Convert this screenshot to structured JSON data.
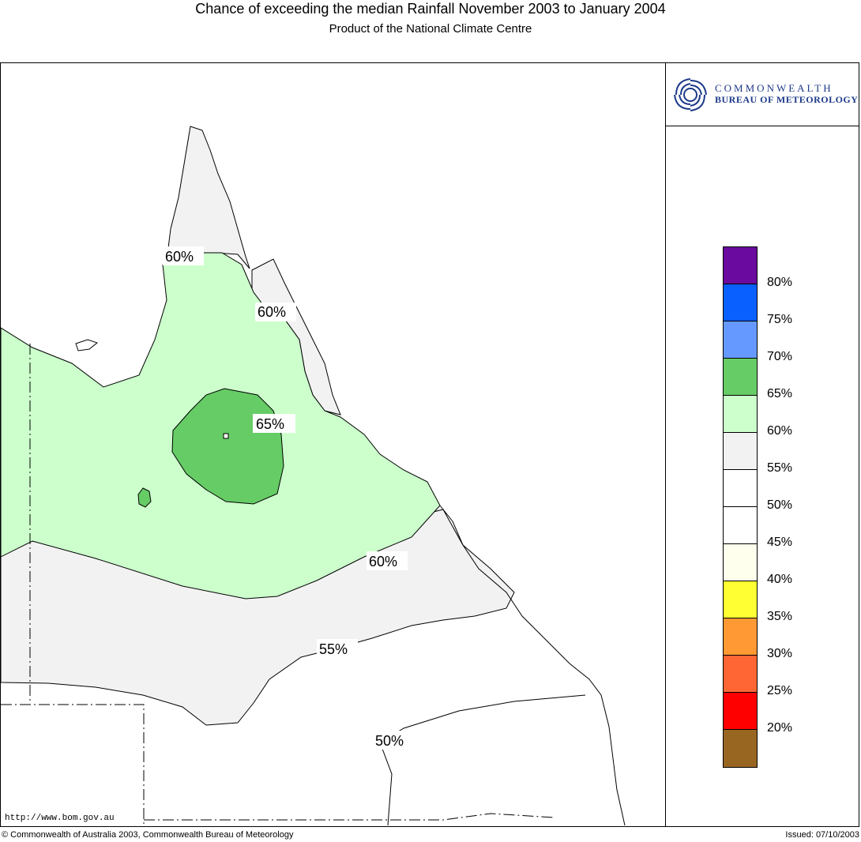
{
  "title": "Chance of exceeding the median Rainfall November 2003 to January 2004",
  "subtitle": "Product of the National Climate Centre",
  "logo": {
    "line1": "COMMONWEALTH",
    "line2": "BUREAU OF METEOROLOGY",
    "icon": "bureau-swirl-logo"
  },
  "contour_labels": [
    "60%",
    "60%",
    "65%",
    "60%",
    "55%",
    "50%"
  ],
  "legend": {
    "colors": [
      "#6a0a9e",
      "#0a5fff",
      "#6699ff",
      "#66cc66",
      "#ccffcc",
      "#f2f2f2",
      "#ffffff",
      "#ffffff",
      "#ffffee",
      "#ffff33",
      "#ff9933",
      "#ff6633",
      "#ff0000",
      "#996622"
    ],
    "labels": [
      "80%",
      "75%",
      "70%",
      "65%",
      "60%",
      "55%",
      "50%",
      "45%",
      "40%",
      "35%",
      "30%",
      "25%",
      "20%"
    ]
  },
  "url": "http://www.bom.gov.au",
  "footer": {
    "copyright": "© Commonwealth of Australia 2003, Commonwealth Bureau of Meteorology",
    "issued": "Issued: 07/10/2003"
  }
}
